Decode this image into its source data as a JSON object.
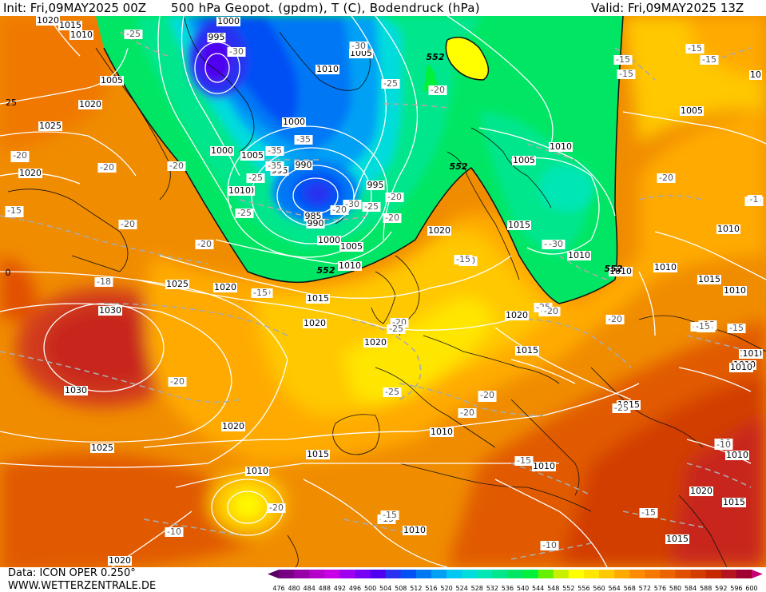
{
  "header": {
    "init": "Init: Fri,09MAY2025 00Z",
    "title": "500 hPa Geopot. (gpdm), T (C), Bodendruck (hPa)",
    "valid": "Valid: Fri,09MAY2025 13Z"
  },
  "footer": {
    "data": "Data: ICON OPER 0.250°",
    "site": "WWW.WETTERZENTRALE.DE"
  },
  "colorscale": {
    "labels": [
      "476",
      "480",
      "484",
      "488",
      "492",
      "496",
      "500",
      "504",
      "508",
      "512",
      "516",
      "520",
      "524",
      "528",
      "532",
      "536",
      "540",
      "544",
      "548",
      "552",
      "556",
      "560",
      "564",
      "568",
      "572",
      "576",
      "580",
      "584",
      "588",
      "592",
      "596",
      "600"
    ],
    "colors": [
      "#5a0064",
      "#780082",
      "#9600a5",
      "#b400c8",
      "#c800e6",
      "#a000f0",
      "#7800f5",
      "#5000f0",
      "#2832f0",
      "#0050f5",
      "#0078f5",
      "#00a0f5",
      "#00c8f0",
      "#00dcdc",
      "#00e6b4",
      "#00e68c",
      "#00e664",
      "#00f03c",
      "#64f000",
      "#c8f000",
      "#ffff00",
      "#ffe600",
      "#ffc800",
      "#ffaa00",
      "#ff8c00",
      "#f57800",
      "#eb6400",
      "#e15000",
      "#d23c00",
      "#c82800",
      "#b4141e",
      "#a00032",
      "#c80078"
    ]
  },
  "map_labels": {
    "pressure": [
      "1020",
      "1015",
      "1010",
      "1005",
      "1020",
      "1025",
      "1020",
      "1000",
      "995",
      "1000",
      "1010",
      "1005",
      "1010",
      "1005",
      "1000",
      "995",
      "990",
      "1010",
      "995",
      "985",
      "990",
      "1000",
      "1005",
      "1010",
      "1005",
      "1010",
      "1015",
      "1020",
      "1005",
      "1015",
      "1020",
      "1025",
      "1020",
      "1030",
      "1030",
      "1020",
      "1015",
      "1020",
      "1020",
      "1015",
      "1015",
      "1010",
      "1010",
      "1025",
      "1020",
      "1015",
      "1010",
      "1010",
      "1020",
      "1015",
      "1010",
      "1010",
      "1010",
      "1010",
      "1010",
      "1010",
      "1010",
      "1010",
      "1015",
      "10",
      "10",
      "1010",
      "101"
    ],
    "temperature": [
      "-25",
      "-25",
      "-30",
      "-35",
      "-35",
      "-35",
      "-30",
      "-25",
      "-30",
      "-25",
      "-25",
      "-20",
      "-20",
      "-20",
      "-20",
      "-20",
      "-20",
      "-20",
      "-20",
      "-15",
      "-15",
      "-15",
      "-20",
      "-25",
      "-25",
      "-20",
      "-20",
      "-20",
      "-25",
      "-30",
      "-25",
      "-20",
      "-15",
      "-15",
      "-15",
      "-20",
      "-20",
      "-15",
      "-15",
      "-15",
      "-10",
      "-10",
      "-15",
      "-10",
      "-15",
      "-20",
      "-25",
      "-20",
      "-20",
      "-15",
      "-18",
      "-15",
      "-20",
      "-30",
      "-20",
      "-15",
      "-15",
      "-20",
      "-15",
      "-15",
      "-20",
      "-10",
      "-1"
    ],
    "contour": [
      "552",
      "552",
      "552",
      "552"
    ],
    "edge": [
      "25",
      "0"
    ]
  }
}
